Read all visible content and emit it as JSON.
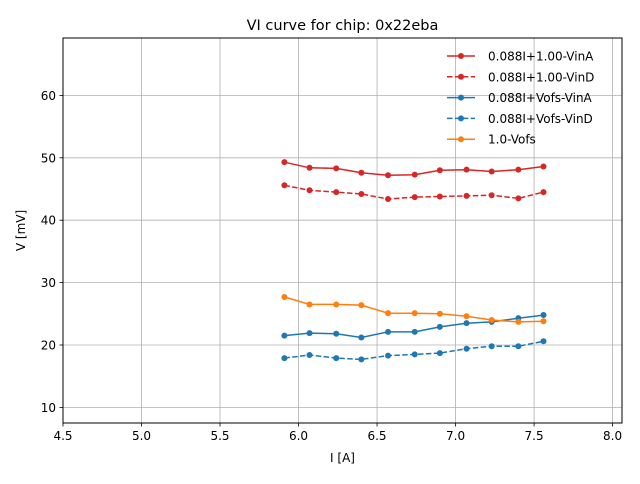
{
  "chart_data": {
    "type": "line",
    "title": "VI curve for chip: 0x22eba",
    "xlabel": "I [A]",
    "ylabel": "V [mV]",
    "xlim": [
      4.5,
      8.06
    ],
    "ylim": [
      7.5,
      69.2
    ],
    "xticks": [
      4.5,
      5.0,
      5.5,
      6.0,
      6.5,
      7.0,
      7.5,
      8.0
    ],
    "xtick_labels": [
      "4.5",
      "5.0",
      "5.5",
      "6.0",
      "6.5",
      "7.0",
      "7.5",
      "8.0"
    ],
    "yticks": [
      10,
      20,
      30,
      40,
      50,
      60
    ],
    "ytick_labels": [
      "10",
      "20",
      "30",
      "40",
      "50",
      "60"
    ],
    "grid": true,
    "legend_position": "top-right",
    "x": [
      5.91,
      6.07,
      6.24,
      6.4,
      6.57,
      6.74,
      6.9,
      7.07,
      7.23,
      7.4,
      7.56
    ],
    "series": [
      {
        "name": "0.088I+1.00-VinA",
        "color": "#d62728",
        "dashed": false,
        "values": [
          49.3,
          48.4,
          48.3,
          47.6,
          47.2,
          47.3,
          48.0,
          48.1,
          47.8,
          48.1,
          48.6
        ]
      },
      {
        "name": "0.088I+1.00-VinD",
        "color": "#d62728",
        "dashed": true,
        "values": [
          45.6,
          44.8,
          44.5,
          44.2,
          43.4,
          43.7,
          43.8,
          43.9,
          44.0,
          43.5,
          44.5
        ]
      },
      {
        "name": "0.088I+Vofs-VinA",
        "color": "#1f77b4",
        "dashed": false,
        "values": [
          21.5,
          21.9,
          21.8,
          21.2,
          22.1,
          22.1,
          22.9,
          23.5,
          23.7,
          24.3,
          24.8
        ]
      },
      {
        "name": "0.088I+Vofs-VinD",
        "color": "#1f77b4",
        "dashed": true,
        "values": [
          17.9,
          18.4,
          17.9,
          17.7,
          18.3,
          18.5,
          18.7,
          19.4,
          19.8,
          19.8,
          20.6
        ]
      },
      {
        "name": "1.0-Vofs",
        "color": "#ff7f0e",
        "dashed": false,
        "values": [
          27.7,
          26.5,
          26.5,
          26.4,
          25.1,
          25.1,
          25.0,
          24.6,
          24.0,
          23.7,
          23.8
        ]
      }
    ]
  }
}
